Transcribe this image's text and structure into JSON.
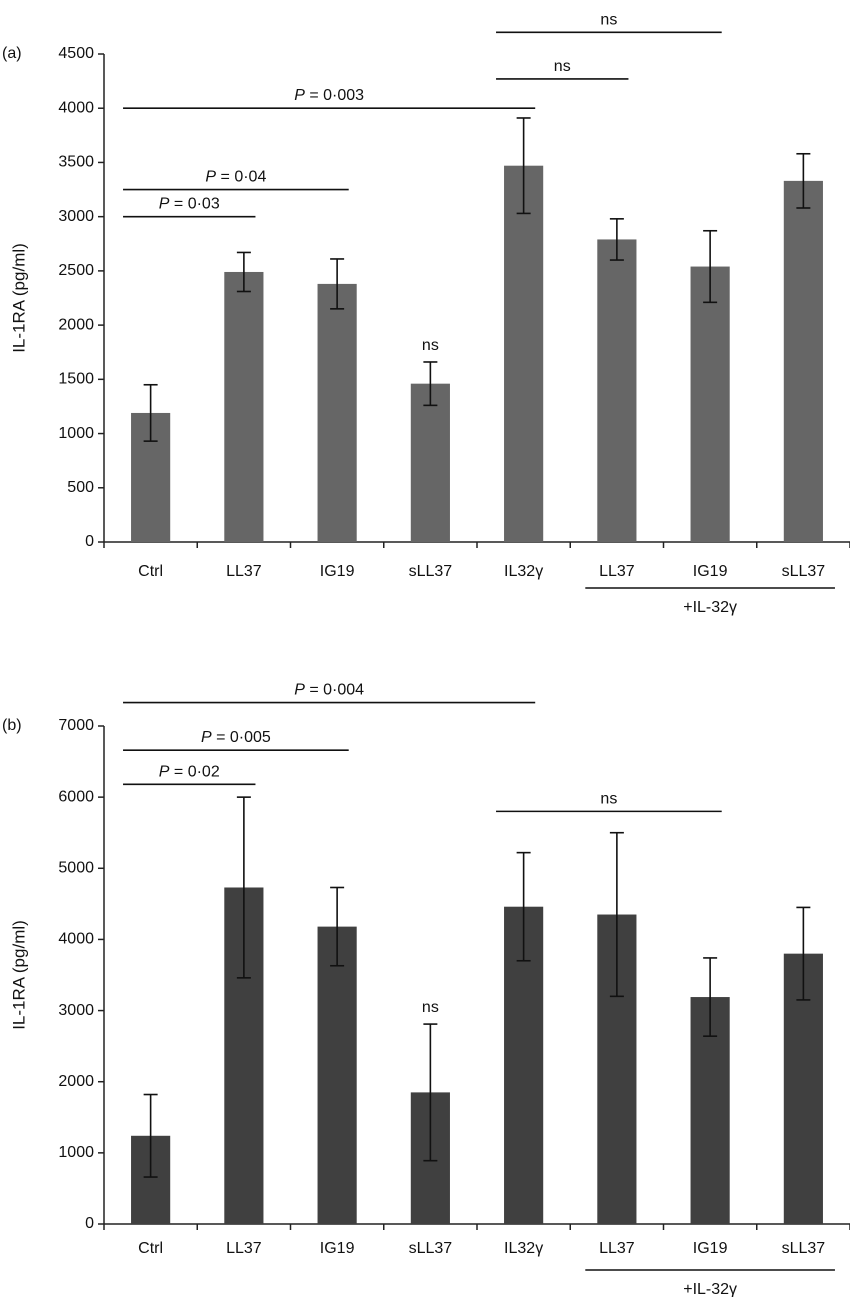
{
  "chart_data": [
    {
      "type": "bar",
      "panel_label": "(a)",
      "ylabel": "IL-1RA (pg/ml)",
      "ylim": [
        0,
        4500
      ],
      "yticks": [
        0,
        500,
        1000,
        1500,
        2000,
        2500,
        3000,
        3500,
        4000,
        4500
      ],
      "categories": [
        "Ctrl",
        "LL37",
        "IG19",
        "sLL37",
        "IL32γ",
        "LL37",
        "IG19",
        "sLL37"
      ],
      "values": [
        1190,
        2490,
        2380,
        1460,
        3470,
        2790,
        2540,
        3330
      ],
      "errors": [
        260,
        180,
        230,
        200,
        440,
        190,
        330,
        250
      ],
      "bar_color": "#666666",
      "group_label": "+IL-32γ",
      "group_range": [
        5,
        7
      ],
      "annotations": [
        {
          "from": 0,
          "to": 1,
          "y": 3000,
          "label_prefix": "P",
          "label_value": " = 0·03"
        },
        {
          "from": 0,
          "to": 2,
          "y": 3250,
          "label_prefix": "P",
          "label_value": " = 0·04"
        },
        {
          "from": 0,
          "to": 4,
          "y": 4000,
          "label_prefix": "P",
          "label_value": " = 0·003"
        },
        {
          "from": 4,
          "to": 5,
          "y": 4270,
          "label_prefix": "",
          "label_value": "ns"
        },
        {
          "from": 4,
          "to": 6,
          "y": 4700,
          "label_prefix": "",
          "label_value": "ns"
        }
      ],
      "bar_annotations": [
        {
          "index": 3,
          "label": "ns"
        }
      ]
    },
    {
      "type": "bar",
      "panel_label": "(b)",
      "ylabel": "IL-1RA (pg/ml)",
      "ylim": [
        0,
        7000
      ],
      "yticks": [
        0,
        1000,
        2000,
        3000,
        4000,
        5000,
        6000,
        7000
      ],
      "categories": [
        "Ctrl",
        "LL37",
        "IG19",
        "sLL37",
        "IL32γ",
        "LL37",
        "IG19",
        "sLL37"
      ],
      "values": [
        1240,
        4730,
        4180,
        1850,
        4460,
        4350,
        3190,
        3800
      ],
      "errors": [
        580,
        1270,
        550,
        960,
        760,
        1150,
        550,
        650
      ],
      "bar_color": "#404040",
      "group_label": "+IL-32γ",
      "group_range": [
        5,
        7
      ],
      "annotations": [
        {
          "from": 0,
          "to": 1,
          "y": 6180,
          "label_prefix": "P",
          "label_value": " = 0·02"
        },
        {
          "from": 0,
          "to": 2,
          "y": 6660,
          "label_prefix": "P",
          "label_value": " = 0·005"
        },
        {
          "from": 0,
          "to": 4,
          "y": 7330,
          "label_prefix": "P",
          "label_value": " = 0·004"
        },
        {
          "from": 4,
          "to": 6,
          "y": 5800,
          "label_prefix": "",
          "label_value": "ns"
        }
      ],
      "bar_annotations": [
        {
          "index": 3,
          "label": "ns"
        }
      ]
    }
  ]
}
